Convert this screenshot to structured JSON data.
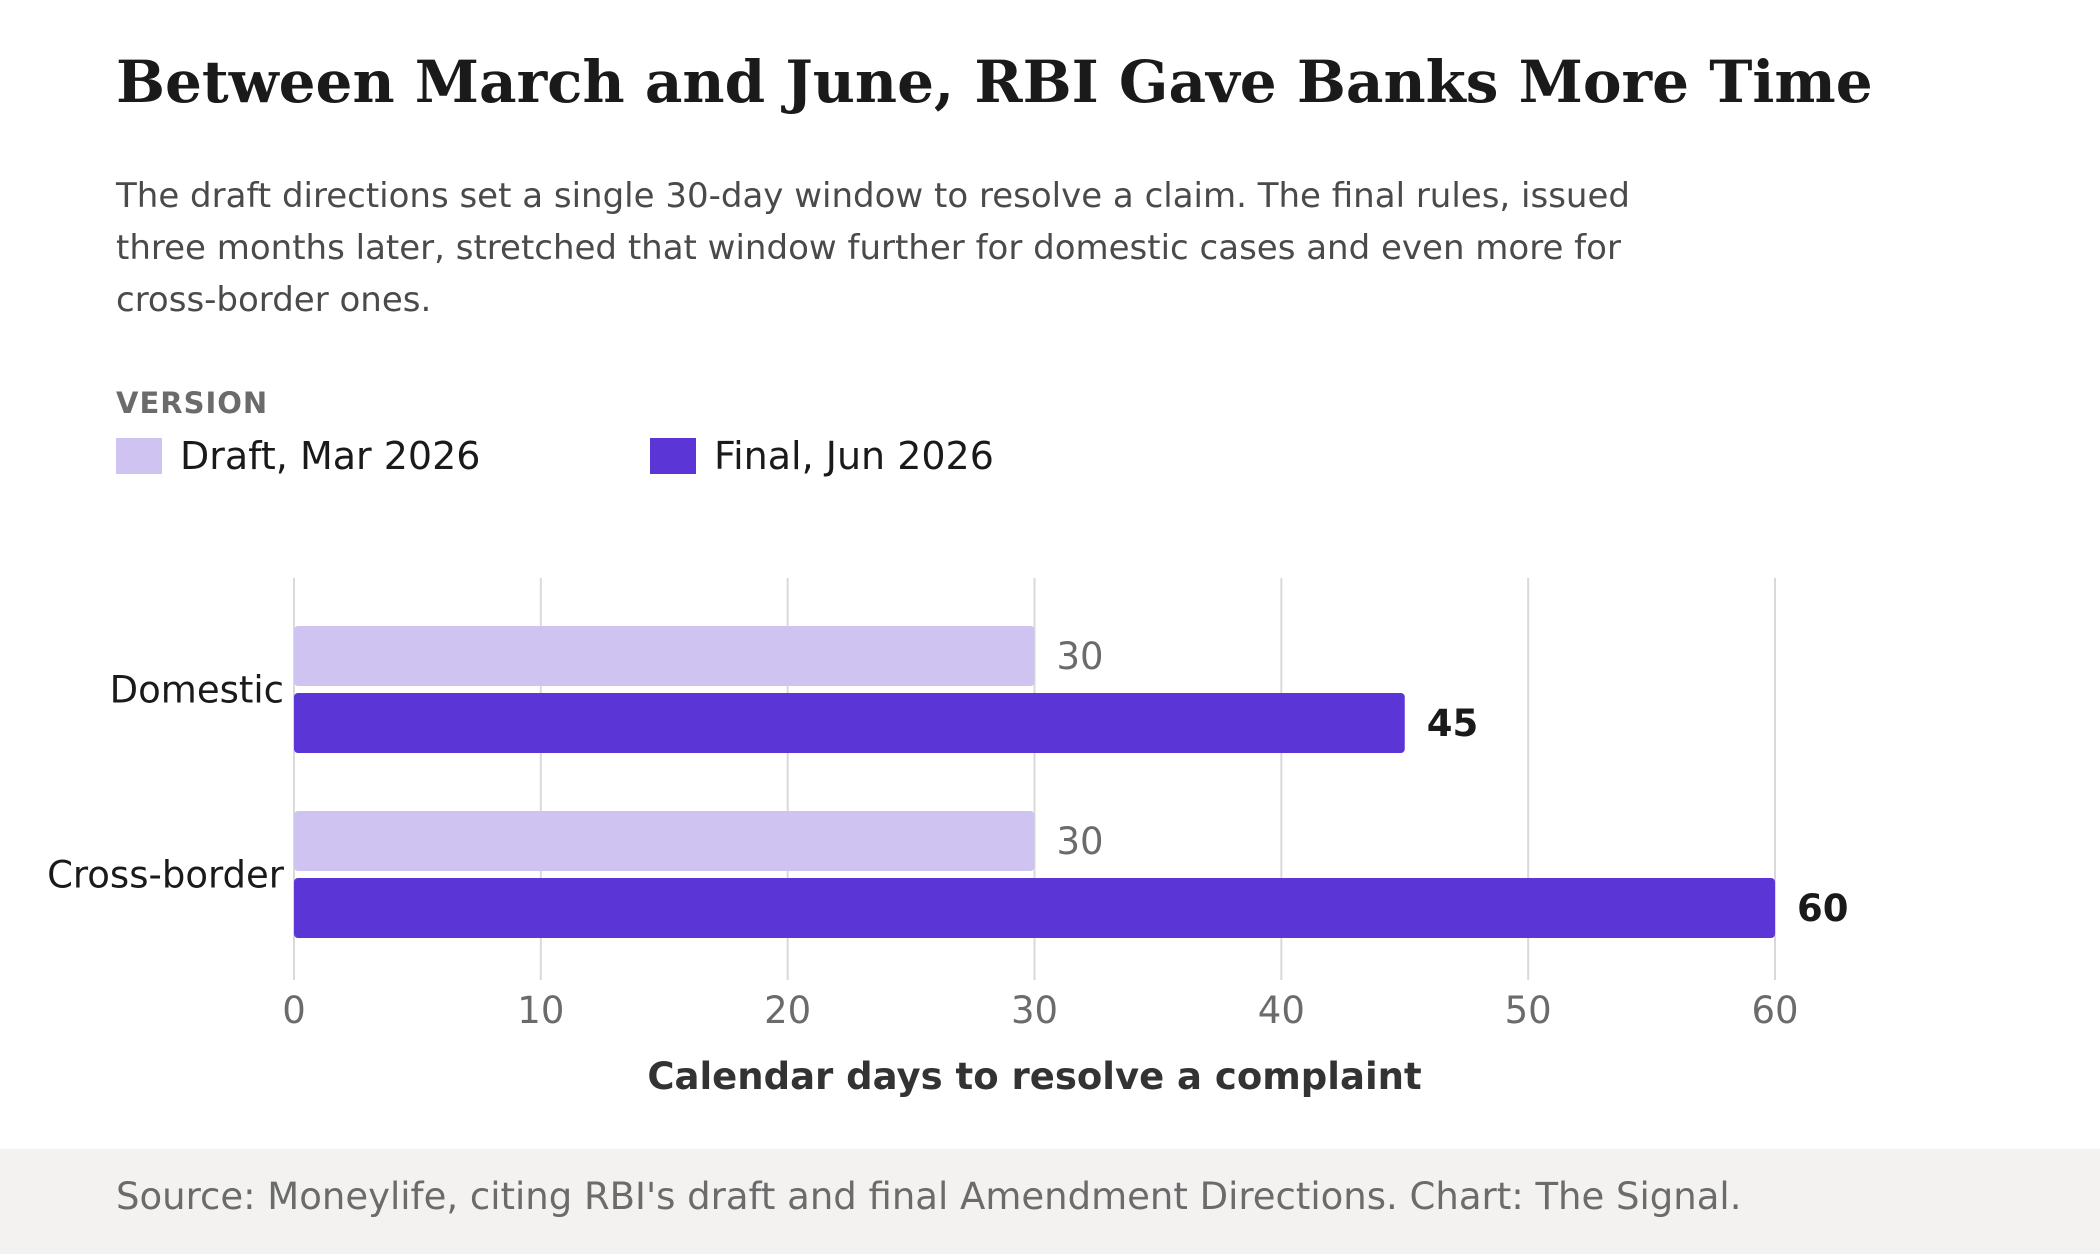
{
  "title": "Between March and June, RBI Gave Banks More Time",
  "subtitle": "The draft directions set a single 30-day window to resolve a claim. The final rules, issued three months later, stretched that window further for domestic cases and even more for cross-border ones.",
  "legend": {
    "title": "VERSION",
    "items": [
      {
        "label": "Draft, Mar 2026",
        "color": "#cfc4f1"
      },
      {
        "label": "Final, Jun 2026",
        "color": "#5b35d5"
      }
    ]
  },
  "chart_data": {
    "type": "bar",
    "orientation": "horizontal",
    "categories": [
      "Domestic",
      "Cross-border"
    ],
    "series": [
      {
        "name": "Draft, Mar 2026",
        "values": [
          30,
          30
        ],
        "color": "#cfc4f1"
      },
      {
        "name": "Final, Jun 2026",
        "values": [
          45,
          60
        ],
        "color": "#5b35d5"
      }
    ],
    "data_labels": {
      "Draft, Mar 2026": [
        "30",
        "30"
      ],
      "Final, Jun 2026": [
        "45",
        "60"
      ]
    },
    "xlabel": "Calendar days to resolve a complaint",
    "xlim": [
      0,
      60
    ],
    "xticks": [
      0,
      10,
      20,
      30,
      40,
      50,
      60
    ],
    "grid": true,
    "legend_position": "top-left"
  },
  "footer": {
    "source": "Source: Moneylife, citing RBI's draft and final Amendment Directions. Chart: The Signal."
  }
}
